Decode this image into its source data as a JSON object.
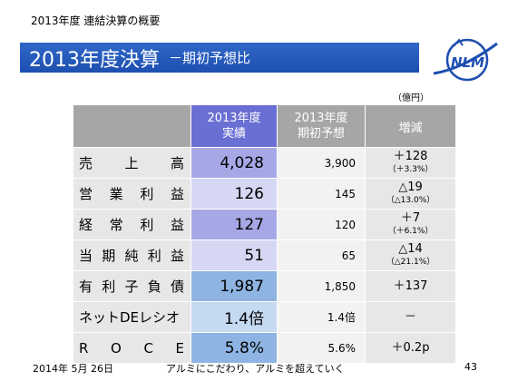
{
  "header": {
    "text": "2013年度 連結決算の概要"
  },
  "title": {
    "main": "2013年度決算",
    "sub": "－期初予想比"
  },
  "logo": {
    "text": "NLM"
  },
  "unit": "（億円）",
  "table": {
    "headers": {
      "actual": [
        "2013年度",
        "実績"
      ],
      "plan": [
        "2013年度",
        "期初予想"
      ],
      "diff": "増減"
    },
    "rows": [
      {
        "label": [
          "売",
          "上",
          "高"
        ],
        "actual": "4,028",
        "plan": "3,900",
        "diff": "＋128",
        "diff_sub": "（＋3.3%）",
        "color": "#a6a8e6"
      },
      {
        "label": [
          "営",
          "業",
          "利",
          "益"
        ],
        "actual": "126",
        "plan": "145",
        "diff": "△19",
        "diff_sub": "（△13.0%）",
        "color": "#d6d7f3"
      },
      {
        "label": [
          "経",
          "常",
          "利",
          "益"
        ],
        "actual": "127",
        "plan": "120",
        "diff": "＋7",
        "diff_sub": "（＋6.1%）",
        "color": "#a6a8e6"
      },
      {
        "label": [
          "当",
          "期",
          "純",
          "利",
          "益"
        ],
        "actual": "51",
        "plan": "65",
        "diff": "△14",
        "diff_sub": "（△21.1%）",
        "color": "#d6d7f3"
      },
      {
        "label": [
          "有",
          "利",
          "子",
          "負",
          "債"
        ],
        "actual": "1,987",
        "plan": "1,850",
        "diff": "＋137",
        "diff_sub": "",
        "color": "#8db4e2"
      },
      {
        "label": [
          "ネットDEレシオ"
        ],
        "actual": "1.4倍",
        "plan": "1.4倍",
        "diff": "－",
        "diff_sub": "",
        "color": "#c5d9f1"
      },
      {
        "label": [
          "R",
          "O",
          "C",
          "E"
        ],
        "actual": "5.8%",
        "plan": "5.6%",
        "diff": "＋0.2p",
        "diff_sub": "",
        "color": "#8db4e2"
      }
    ]
  },
  "footer": {
    "date": "2014年 5月 26日",
    "slogan": "アルミにこだわり、アルミを超えていく",
    "page": "43"
  }
}
